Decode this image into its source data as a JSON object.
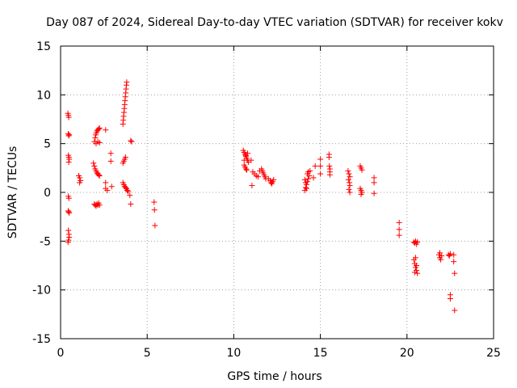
{
  "chart_data": {
    "type": "scatter",
    "title": "Day 087 of 2024, Sidereal Day-to-day VTEC variation (SDTVAR) for receiver kokv",
    "xlabel": "GPS time / hours",
    "ylabel": "SDTVAR / TECUs",
    "xlim": [
      0,
      25
    ],
    "ylim": [
      -15,
      15
    ],
    "xticks": [
      0,
      5,
      10,
      15,
      20,
      25
    ],
    "yticks": [
      -15,
      -10,
      -5,
      0,
      5,
      10,
      15
    ],
    "grid": true,
    "marker": "+",
    "color": "#ff0000",
    "series": [
      {
        "name": "SDTVAR",
        "points": [
          [
            0.42,
            8.1
          ],
          [
            0.45,
            7.9
          ],
          [
            0.47,
            7.7
          ],
          [
            0.44,
            6.0
          ],
          [
            0.47,
            5.8
          ],
          [
            0.5,
            5.9
          ],
          [
            0.45,
            3.8
          ],
          [
            0.48,
            3.6
          ],
          [
            0.5,
            3.4
          ],
          [
            0.47,
            3.1
          ],
          [
            0.45,
            -0.4
          ],
          [
            0.48,
            -0.6
          ],
          [
            0.44,
            -1.9
          ],
          [
            0.47,
            -2.0
          ],
          [
            0.5,
            -2.1
          ],
          [
            0.45,
            -3.9
          ],
          [
            0.48,
            -4.3
          ],
          [
            0.5,
            -4.6
          ],
          [
            0.46,
            -4.9
          ],
          [
            0.43,
            -5.1
          ],
          [
            1.05,
            1.7
          ],
          [
            1.1,
            1.5
          ],
          [
            1.15,
            1.2
          ],
          [
            1.1,
            1.0
          ],
          [
            1.9,
            3.0
          ],
          [
            1.95,
            2.7
          ],
          [
            2.0,
            2.4
          ],
          [
            2.05,
            2.2
          ],
          [
            2.1,
            2.0
          ],
          [
            2.15,
            1.9
          ],
          [
            2.2,
            1.8
          ],
          [
            2.25,
            1.7
          ],
          [
            1.95,
            5.2
          ],
          [
            2.0,
            5.6
          ],
          [
            2.03,
            5.9
          ],
          [
            2.06,
            6.1
          ],
          [
            2.1,
            6.3
          ],
          [
            2.15,
            6.4
          ],
          [
            2.2,
            6.5
          ],
          [
            2.25,
            6.6
          ],
          [
            2.05,
            5.0
          ],
          [
            2.15,
            5.2
          ],
          [
            2.25,
            5.1
          ],
          [
            1.95,
            -1.2
          ],
          [
            2.0,
            -1.3
          ],
          [
            2.05,
            -1.4
          ],
          [
            2.1,
            -1.2
          ],
          [
            2.15,
            -1.3
          ],
          [
            2.2,
            -1.1
          ],
          [
            2.25,
            -1.3
          ],
          [
            2.6,
            6.4
          ],
          [
            2.6,
            1.0
          ],
          [
            2.6,
            0.4
          ],
          [
            2.7,
            0.2
          ],
          [
            2.9,
            4.0
          ],
          [
            2.9,
            3.2
          ],
          [
            2.95,
            0.6
          ],
          [
            3.6,
            7.0
          ],
          [
            3.62,
            7.4
          ],
          [
            3.64,
            7.8
          ],
          [
            3.66,
            8.2
          ],
          [
            3.68,
            8.6
          ],
          [
            3.7,
            9.0
          ],
          [
            3.72,
            9.4
          ],
          [
            3.74,
            9.8
          ],
          [
            3.76,
            10.2
          ],
          [
            3.78,
            10.6
          ],
          [
            3.8,
            11.0
          ],
          [
            3.82,
            11.3
          ],
          [
            3.6,
            3.0
          ],
          [
            3.65,
            3.2
          ],
          [
            3.7,
            3.4
          ],
          [
            3.75,
            3.6
          ],
          [
            3.6,
            1.0
          ],
          [
            3.65,
            0.8
          ],
          [
            3.7,
            0.6
          ],
          [
            3.75,
            0.5
          ],
          [
            3.8,
            0.4
          ],
          [
            3.85,
            0.2
          ],
          [
            3.9,
            0.1
          ],
          [
            4.05,
            5.3
          ],
          [
            4.1,
            5.2
          ],
          [
            4.0,
            -0.3
          ],
          [
            4.05,
            -1.2
          ],
          [
            5.4,
            -1.0
          ],
          [
            5.42,
            -1.8
          ],
          [
            5.45,
            -3.4
          ],
          [
            10.55,
            4.3
          ],
          [
            10.6,
            4.1
          ],
          [
            10.65,
            3.9
          ],
          [
            10.7,
            3.7
          ],
          [
            10.75,
            3.5
          ],
          [
            10.8,
            3.3
          ],
          [
            10.85,
            3.1
          ],
          [
            10.6,
            2.8
          ],
          [
            10.65,
            2.6
          ],
          [
            10.7,
            2.4
          ],
          [
            10.75,
            2.3
          ],
          [
            10.6,
            3.3
          ],
          [
            10.7,
            3.8
          ],
          [
            10.8,
            4.0
          ],
          [
            11.0,
            3.3
          ],
          [
            11.05,
            0.7
          ],
          [
            11.1,
            2.1
          ],
          [
            11.2,
            1.9
          ],
          [
            11.3,
            1.7
          ],
          [
            11.4,
            1.6
          ],
          [
            11.5,
            2.2
          ],
          [
            11.6,
            2.4
          ],
          [
            11.65,
            2.2
          ],
          [
            11.7,
            2.0
          ],
          [
            11.75,
            1.8
          ],
          [
            11.8,
            1.6
          ],
          [
            11.85,
            1.4
          ],
          [
            12.0,
            1.4
          ],
          [
            12.1,
            1.2
          ],
          [
            12.15,
            1.0
          ],
          [
            12.2,
            0.9
          ],
          [
            12.25,
            1.1
          ],
          [
            12.3,
            1.3
          ],
          [
            14.1,
            0.2
          ],
          [
            14.15,
            0.5
          ],
          [
            14.2,
            0.8
          ],
          [
            14.25,
            1.1
          ],
          [
            14.3,
            1.4
          ],
          [
            14.35,
            1.7
          ],
          [
            14.1,
            1.3
          ],
          [
            14.15,
            1.0
          ],
          [
            14.2,
            0.4
          ],
          [
            14.25,
            1.9
          ],
          [
            14.3,
            2.1
          ],
          [
            14.4,
            2.2
          ],
          [
            14.6,
            1.5
          ],
          [
            14.7,
            2.7
          ],
          [
            15.0,
            3.4
          ],
          [
            15.0,
            2.7
          ],
          [
            15.0,
            1.9
          ],
          [
            15.5,
            3.9
          ],
          [
            15.5,
            3.6
          ],
          [
            15.52,
            2.7
          ],
          [
            15.55,
            2.4
          ],
          [
            15.55,
            2.1
          ],
          [
            15.55,
            1.8
          ],
          [
            16.6,
            2.2
          ],
          [
            16.65,
            1.9
          ],
          [
            16.7,
            1.6
          ],
          [
            16.62,
            1.3
          ],
          [
            16.68,
            1.0
          ],
          [
            16.7,
            0.7
          ],
          [
            16.65,
            0.3
          ],
          [
            16.7,
            0.0
          ],
          [
            17.3,
            2.7
          ],
          [
            17.35,
            2.5
          ],
          [
            17.4,
            2.3
          ],
          [
            17.3,
            0.4
          ],
          [
            17.35,
            0.2
          ],
          [
            17.4,
            0.0
          ],
          [
            17.35,
            -0.2
          ],
          [
            18.1,
            1.5
          ],
          [
            18.1,
            1.0
          ],
          [
            18.1,
            -0.1
          ],
          [
            19.55,
            -3.1
          ],
          [
            19.55,
            -3.8
          ],
          [
            19.55,
            -4.4
          ],
          [
            20.4,
            -5.1
          ],
          [
            20.45,
            -5.2
          ],
          [
            20.5,
            -5.0
          ],
          [
            20.55,
            -5.3
          ],
          [
            20.6,
            -5.1
          ],
          [
            20.4,
            -6.9
          ],
          [
            20.45,
            -7.3
          ],
          [
            20.5,
            -7.7
          ],
          [
            20.55,
            -8.0
          ],
          [
            20.6,
            -8.3
          ],
          [
            20.5,
            -6.7
          ],
          [
            20.45,
            -8.2
          ],
          [
            20.55,
            -7.5
          ],
          [
            21.85,
            -6.4
          ],
          [
            21.9,
            -6.7
          ],
          [
            21.95,
            -6.9
          ],
          [
            22.0,
            -6.5
          ],
          [
            21.9,
            -6.2
          ],
          [
            22.4,
            -6.4
          ],
          [
            22.45,
            -6.5
          ],
          [
            22.5,
            -6.3
          ],
          [
            22.5,
            -10.5
          ],
          [
            22.5,
            -10.9
          ],
          [
            22.7,
            -6.4
          ],
          [
            22.7,
            -7.1
          ],
          [
            22.75,
            -8.3
          ],
          [
            22.75,
            -12.1
          ]
        ]
      }
    ]
  }
}
